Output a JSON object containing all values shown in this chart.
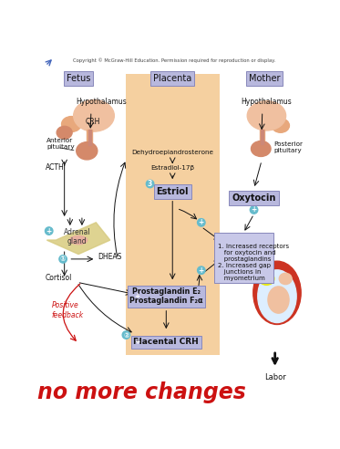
{
  "title_text": "Copyright © McGraw-Hill Education. Permission required for reproduction or display.",
  "bg_color": "#ffffff",
  "placenta_bg": "#f5d0a0",
  "box_color": "#9999cc",
  "box_facecolor": "#b8b8dd",
  "box_facecolor2": "#c8c8e8",
  "label_fetus": "Fetus",
  "label_placenta": "Placenta",
  "label_mother": "Mother",
  "label_hypothalamus_fetus": "Hypothalamus",
  "label_crh": "CRH",
  "label_anterior_pituitary": "Anterior\npituitary",
  "label_acth": "ACTH",
  "label_adrenal_gland": "Adrenal\ngland",
  "label_dheas": "DHEAS",
  "label_cortisol": "Cortisol",
  "label_positive_feedback": "Positive\nfeedback",
  "label_dehydro": "Dehydroepiandrosterone",
  "label_estradiol": "Estradiol-17β",
  "label_estriol": "Estriol",
  "label_prostaglandin": "Prostaglandin E₂\nProstaglandin F₂α",
  "label_placental_crh": "Placental CRH",
  "label_hypothalamus_mother": "Hypothalamus",
  "label_posterior_pituitary": "Posterior\npituitary",
  "label_oxytocin": "Oxytocin",
  "label_uterus_effects": "1. Increased receptors\n   for oxytocin and\n   prostaglandins\n2. Increased gap\n   junctions in\n   myometrium",
  "label_labor": "Labor",
  "handwriting": "no more changes",
  "arrow_color": "#111111",
  "red_color": "#cc1111",
  "circle_color": "#66bbcc",
  "skin_color": "#e8a87c",
  "skin_dark": "#d4896a",
  "skin_light": "#f0c0a0",
  "adrenal_color": "#e8e0a0",
  "adrenal_dark": "#c8b870",
  "yellow_color": "#e8e800",
  "uterus_red": "#cc3322"
}
